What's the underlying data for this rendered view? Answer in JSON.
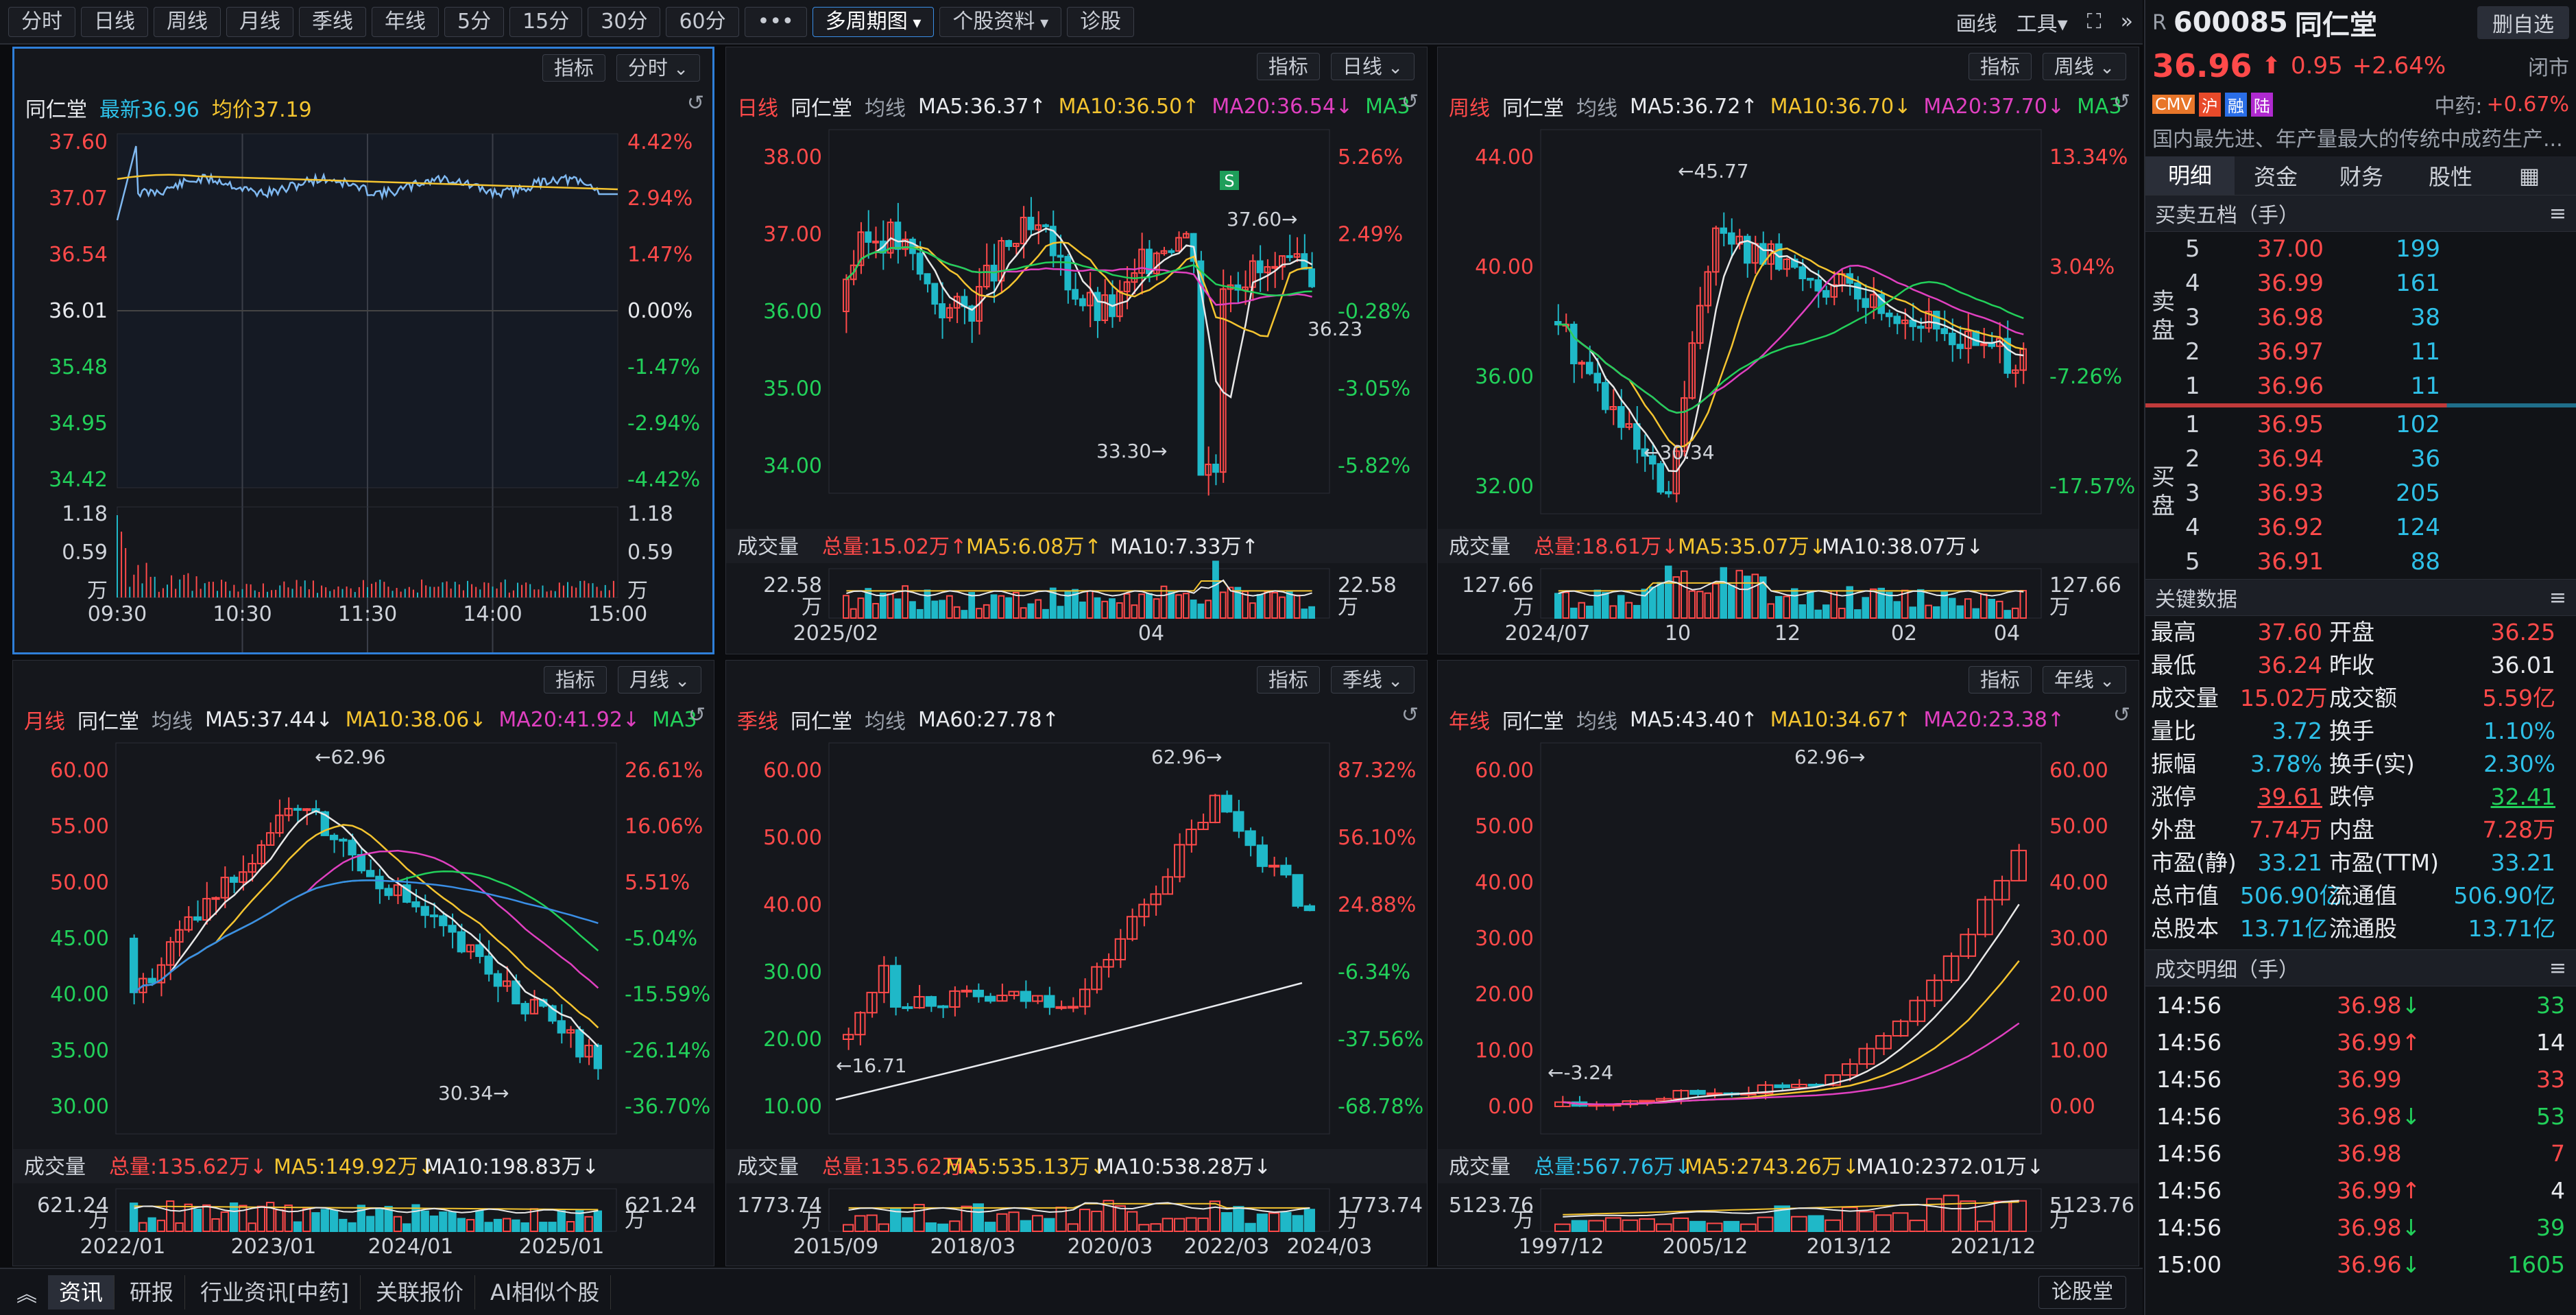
{
  "toolbar": {
    "periods": [
      "分时",
      "日线",
      "周线",
      "月线",
      "季线",
      "年线",
      "5分",
      "15分",
      "30分",
      "60分"
    ],
    "more": "•••",
    "multi": "多周期图",
    "profile": "个股资料",
    "diagnose": "诊股",
    "draw": "画线",
    "tools": "工具"
  },
  "stock": {
    "flag": "R",
    "code": "600085",
    "name": "同仁堂",
    "price": "36.96",
    "change": "0.95",
    "pct": "+2.64%",
    "status": "闭市",
    "delete": "删自选",
    "tags": [
      "CMV",
      "沪",
      "融",
      "陆"
    ],
    "sector": "中药:",
    "sector_pct": "+0.67%",
    "desc": "国内最先进、年产量最大的传统中成药生产..."
  },
  "side_tabs": [
    "明细",
    "资金",
    "财务",
    "股性"
  ],
  "orderbook": {
    "title": "买卖五档（手）",
    "sell_label": "卖盘",
    "buy_label": "买盘",
    "sells": [
      [
        "5",
        "37.00",
        "199"
      ],
      [
        "4",
        "36.99",
        "161"
      ],
      [
        "3",
        "36.98",
        "38"
      ],
      [
        "2",
        "36.97",
        "11"
      ],
      [
        "1",
        "36.96",
        "11"
      ]
    ],
    "buys": [
      [
        "1",
        "36.95",
        "102"
      ],
      [
        "2",
        "36.94",
        "36"
      ],
      [
        "3",
        "36.93",
        "205"
      ],
      [
        "4",
        "36.92",
        "124"
      ],
      [
        "5",
        "36.91",
        "88"
      ]
    ]
  },
  "keydata": {
    "title": "关键数据",
    "rows": [
      [
        "最高",
        "37.60",
        "开盘",
        "36.25"
      ],
      [
        "最低",
        "36.24",
        "昨收",
        "36.01"
      ],
      [
        "成交量",
        "15.02万",
        "成交额",
        "5.59亿"
      ],
      [
        "量比",
        "3.72",
        "换手",
        "1.10%"
      ],
      [
        "振幅",
        "3.78%",
        "换手(实)",
        "2.30%"
      ],
      [
        "涨停",
        "39.61",
        "跌停",
        "32.41"
      ],
      [
        "外盘",
        "7.74万",
        "内盘",
        "7.28万"
      ],
      [
        "市盈(静)",
        "33.21",
        "市盈(TTM)",
        "33.21"
      ],
      [
        "总市值",
        "506.90亿",
        "流通值",
        "506.90亿"
      ],
      [
        "总股本",
        "13.71亿",
        "流通股",
        "13.71亿"
      ]
    ]
  },
  "trades": {
    "title": "成交明细（手）",
    "rows": [
      [
        "14:56",
        "36.98",
        "↓",
        "33"
      ],
      [
        "14:56",
        "36.99",
        "↑",
        "14"
      ],
      [
        "14:56",
        "36.99",
        "",
        "33"
      ],
      [
        "14:56",
        "36.98",
        "↓",
        "53"
      ],
      [
        "14:56",
        "36.98",
        "",
        "7"
      ],
      [
        "14:56",
        "36.99",
        "↑",
        "4"
      ],
      [
        "14:56",
        "36.98",
        "↓",
        "39"
      ],
      [
        "15:00",
        "36.96",
        "↓",
        "1605"
      ]
    ]
  },
  "bottom_tabs": [
    "资讯",
    "研报",
    "行业资讯[中药]",
    "关联报价",
    "AI相似个股"
  ],
  "bottom_right": "论股堂",
  "panels": {
    "p1": {
      "btn1": "指标",
      "btn2": "分时",
      "name": "同仁堂",
      "latest": "最新36.96",
      "avg": "均价37.19",
      "yticks": [
        "37.60",
        "37.07",
        "36.54",
        "36.01",
        "35.48",
        "34.95",
        "34.42"
      ],
      "pticks": [
        "4.42%",
        "2.94%",
        "1.47%",
        "0.00%",
        "-1.47%",
        "-2.94%",
        "-4.42%"
      ],
      "vticks": [
        "1.18",
        "0.59",
        "万"
      ],
      "xticks": [
        "09:30",
        "10:30",
        "11:30",
        "14:00",
        "15:00"
      ]
    },
    "p2": {
      "btn1": "指标",
      "btn2": "日线",
      "per": "日线",
      "name": "同仁堂",
      "ma": "均线",
      "ma5": "MA5:36.37↑",
      "ma10": "MA10:36.50↑",
      "ma20": "MA20:36.54↓",
      "ma3": "MA3",
      "yticks": [
        "38.00",
        "37.00",
        "36.00",
        "35.00",
        "34.00"
      ],
      "pticks": [
        "5.26%",
        "2.49%",
        "-0.28%",
        "-3.05%",
        "-5.82%"
      ],
      "hi": "37.60→",
      "lo": "33.30→",
      "last": "36.23",
      "mark": "S",
      "vol": "成交量",
      "tot": "总量:15.02万↑",
      "vma5": "MA5:6.08万↑",
      "vma10": "MA10:7.33万↑",
      "vt": "22.58",
      "xticks": [
        "2025/02",
        "04"
      ]
    },
    "p3": {
      "btn1": "指标",
      "btn2": "周线",
      "per": "周线",
      "name": "同仁堂",
      "ma": "均线",
      "ma5": "MA5:36.72↑",
      "ma10": "MA10:36.70↓",
      "ma20": "MA20:37.70↓",
      "ma3": "MA3",
      "yticks": [
        "44.00",
        "40.00",
        "36.00",
        "32.00"
      ],
      "pticks": [
        "13.34%",
        "3.04%",
        "-7.26%",
        "-17.57%"
      ],
      "hi": "←45.77",
      "lo": "←30.34",
      "vol": "成交量",
      "tot": "总量:18.61万↓",
      "vma5": "MA5:35.07万↓",
      "vma10": "MA10:38.07万↓",
      "vt": "127.66",
      "xticks": [
        "2024/07",
        "10",
        "12",
        "02",
        "04"
      ]
    },
    "p4": {
      "btn1": "指标",
      "btn2": "月线",
      "per": "月线",
      "name": "同仁堂",
      "ma": "均线",
      "ma5": "MA5:37.44↓",
      "ma10": "MA10:38.06↓",
      "ma20": "MA20:41.92↓",
      "ma3": "MA3",
      "yticks": [
        "60.00",
        "55.00",
        "50.00",
        "45.00",
        "40.00",
        "35.00",
        "30.00"
      ],
      "pticks": [
        "26.61%",
        "16.06%",
        "5.51%",
        "-5.04%",
        "-15.59%",
        "-26.14%",
        "-36.70%"
      ],
      "hi": "←62.96",
      "lo": "30.34→",
      "vol": "成交量",
      "tot": "总量:135.62万↓",
      "vma5": "MA5:149.92万↓",
      "vma10": "MA10:198.83万↓",
      "vt": "621.24",
      "xticks": [
        "2022/01",
        "2023/01",
        "2024/01",
        "2025/01"
      ]
    },
    "p5": {
      "btn1": "指标",
      "btn2": "季线",
      "per": "季线",
      "name": "同仁堂",
      "ma": "均线",
      "ma60": "MA60:27.78↑",
      "yticks": [
        "60.00",
        "50.00",
        "40.00",
        "30.00",
        "20.00",
        "10.00"
      ],
      "pticks": [
        "87.32%",
        "56.10%",
        "24.88%",
        "-6.34%",
        "-37.56%",
        "-68.78%"
      ],
      "hi": "62.96→",
      "lo": "←16.71",
      "vol": "成交量",
      "tot": "总量:135.62万↓",
      "vma5": "MA5:535.13万↓",
      "vma10": "MA10:538.28万↓",
      "vt": "1773.74",
      "xticks": [
        "2015/09",
        "2018/03",
        "2020/03",
        "2022/03",
        "2024/03"
      ]
    },
    "p6": {
      "btn1": "指标",
      "btn2": "年线",
      "per": "年线",
      "name": "同仁堂",
      "ma": "均线",
      "ma5": "MA5:43.40↑",
      "ma10": "MA10:34.67↑",
      "ma20": "MA20:23.38↑",
      "yticks": [
        "60.00",
        "50.00",
        "40.00",
        "30.00",
        "20.00",
        "10.00",
        "0.00"
      ],
      "hi": "62.96→",
      "lo": "←-3.24",
      "vol": "成交量",
      "tot": "总量:567.76万↓",
      "vma5": "MA5:2743.26万↓",
      "vma10": "MA10:2372.01万↓",
      "vt": "5123.76",
      "xticks": [
        "1997/12",
        "2005/12",
        "2013/12",
        "2021/12"
      ]
    }
  },
  "colors": {
    "up": "#ff4a4a",
    "down": "#1fb8c8",
    "ma5": "#e8e8e8",
    "ma10": "#f4c430",
    "ma20": "#e040c0",
    "ma30": "#22d05a",
    "ma60": "#3a8ee6",
    "accent": "#2f7fd8"
  }
}
